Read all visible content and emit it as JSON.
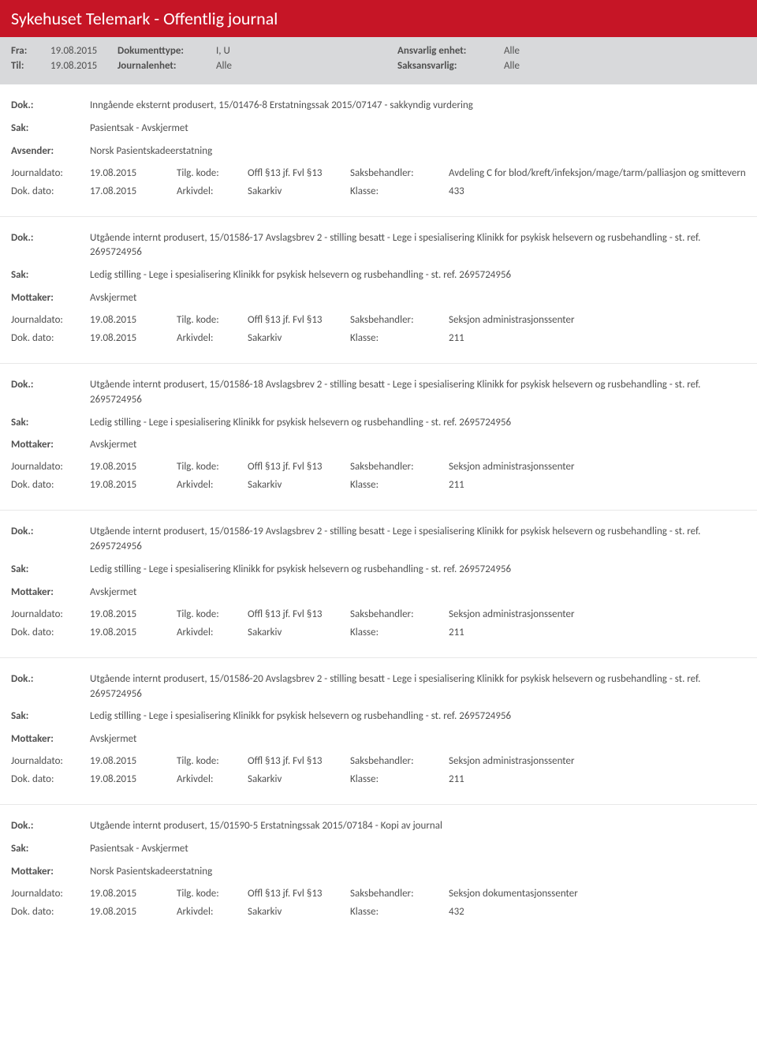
{
  "header": {
    "title": "Sykehuset Telemark - Offentlig journal"
  },
  "meta": {
    "fra_label": "Fra:",
    "fra_value": "19.08.2015",
    "til_label": "Til:",
    "til_value": "19.08.2015",
    "doktype_label": "Dokumenttype:",
    "doktype_value": "I, U",
    "journalenhet_label": "Journalenhet:",
    "journalenhet_value": "Alle",
    "ansvenhet_label": "Ansvarlig enhet:",
    "ansvenhet_value": "Alle",
    "saksansv_label": "Saksansvarlig:",
    "saksansv_value": "Alle"
  },
  "labels": {
    "dok": "Dok.:",
    "sak": "Sak:",
    "avsender": "Avsender:",
    "mottaker": "Mottaker:",
    "journaldato": "Journaldato:",
    "dokdato": "Dok. dato:",
    "tilgkode": "Tilg. kode:",
    "arkivdel": "Arkivdel:",
    "saksbehandler": "Saksbehandler:",
    "klasse": "Klasse:"
  },
  "entries": [
    {
      "dok": "Inngående eksternt produsert, 15/01476-8 Erstatningssak 2015/07147 - sakkyndig vurdering",
      "sak": "Pasientsak - Avskjermet",
      "party_label": "Avsender:",
      "party_value": "Norsk Pasientskadeerstatning",
      "journaldato": "19.08.2015",
      "tilgkode": "Offl §13 jf. Fvl §13",
      "saksbehandler": "Avdeling C for blod/kreft/infeksjon/mage/tarm/palliasjon og smittevern",
      "dokdato": "17.08.2015",
      "arkivdel": "Sakarkiv",
      "klasse": "433"
    },
    {
      "dok": "Utgående internt produsert, 15/01586-17 Avslagsbrev 2 - stilling besatt - Lege i spesialisering Klinikk for psykisk helsevern og rusbehandling - st. ref. 2695724956",
      "sak": "Ledig stilling - Lege i spesialisering Klinikk for psykisk helsevern og rusbehandling - st. ref. 2695724956",
      "party_label": "Mottaker:",
      "party_value": "Avskjermet",
      "journaldato": "19.08.2015",
      "tilgkode": "Offl §13 jf. Fvl §13",
      "saksbehandler": "Seksjon administrasjonssenter",
      "dokdato": "19.08.2015",
      "arkivdel": "Sakarkiv",
      "klasse": "211"
    },
    {
      "dok": "Utgående internt produsert, 15/01586-18 Avslagsbrev 2 - stilling besatt - Lege i spesialisering Klinikk for psykisk helsevern og rusbehandling - st. ref. 2695724956",
      "sak": "Ledig stilling - Lege i spesialisering Klinikk for psykisk helsevern og rusbehandling - st. ref. 2695724956",
      "party_label": "Mottaker:",
      "party_value": "Avskjermet",
      "journaldato": "19.08.2015",
      "tilgkode": "Offl §13 jf. Fvl §13",
      "saksbehandler": "Seksjon administrasjonssenter",
      "dokdato": "19.08.2015",
      "arkivdel": "Sakarkiv",
      "klasse": "211"
    },
    {
      "dok": "Utgående internt produsert, 15/01586-19 Avslagsbrev 2 - stilling besatt - Lege i spesialisering Klinikk for psykisk helsevern og rusbehandling - st. ref. 2695724956",
      "sak": "Ledig stilling - Lege i spesialisering Klinikk for psykisk helsevern og rusbehandling - st. ref. 2695724956",
      "party_label": "Mottaker:",
      "party_value": "Avskjermet",
      "journaldato": "19.08.2015",
      "tilgkode": "Offl §13 jf. Fvl §13",
      "saksbehandler": "Seksjon administrasjonssenter",
      "dokdato": "19.08.2015",
      "arkivdel": "Sakarkiv",
      "klasse": "211"
    },
    {
      "dok": "Utgående internt produsert, 15/01586-20 Avslagsbrev 2 - stilling besatt - Lege i spesialisering Klinikk for psykisk helsevern og rusbehandling - st. ref. 2695724956",
      "sak": "Ledig stilling - Lege i spesialisering Klinikk for psykisk helsevern og rusbehandling - st. ref. 2695724956",
      "party_label": "Mottaker:",
      "party_value": "Avskjermet",
      "journaldato": "19.08.2015",
      "tilgkode": "Offl §13 jf. Fvl §13",
      "saksbehandler": "Seksjon administrasjonssenter",
      "dokdato": "19.08.2015",
      "arkivdel": "Sakarkiv",
      "klasse": "211"
    },
    {
      "dok": "Utgående internt produsert, 15/01590-5 Erstatningssak 2015/07184 - Kopi av journal",
      "sak": "Pasientsak - Avskjermet",
      "party_label": "Mottaker:",
      "party_value": "Norsk Pasientskadeerstatning",
      "journaldato": "19.08.2015",
      "tilgkode": "Offl §13 jf. Fvl §13",
      "saksbehandler": "Seksjon dokumentasjonssenter",
      "dokdato": "19.08.2015",
      "arkivdel": "Sakarkiv",
      "klasse": "432"
    }
  ]
}
